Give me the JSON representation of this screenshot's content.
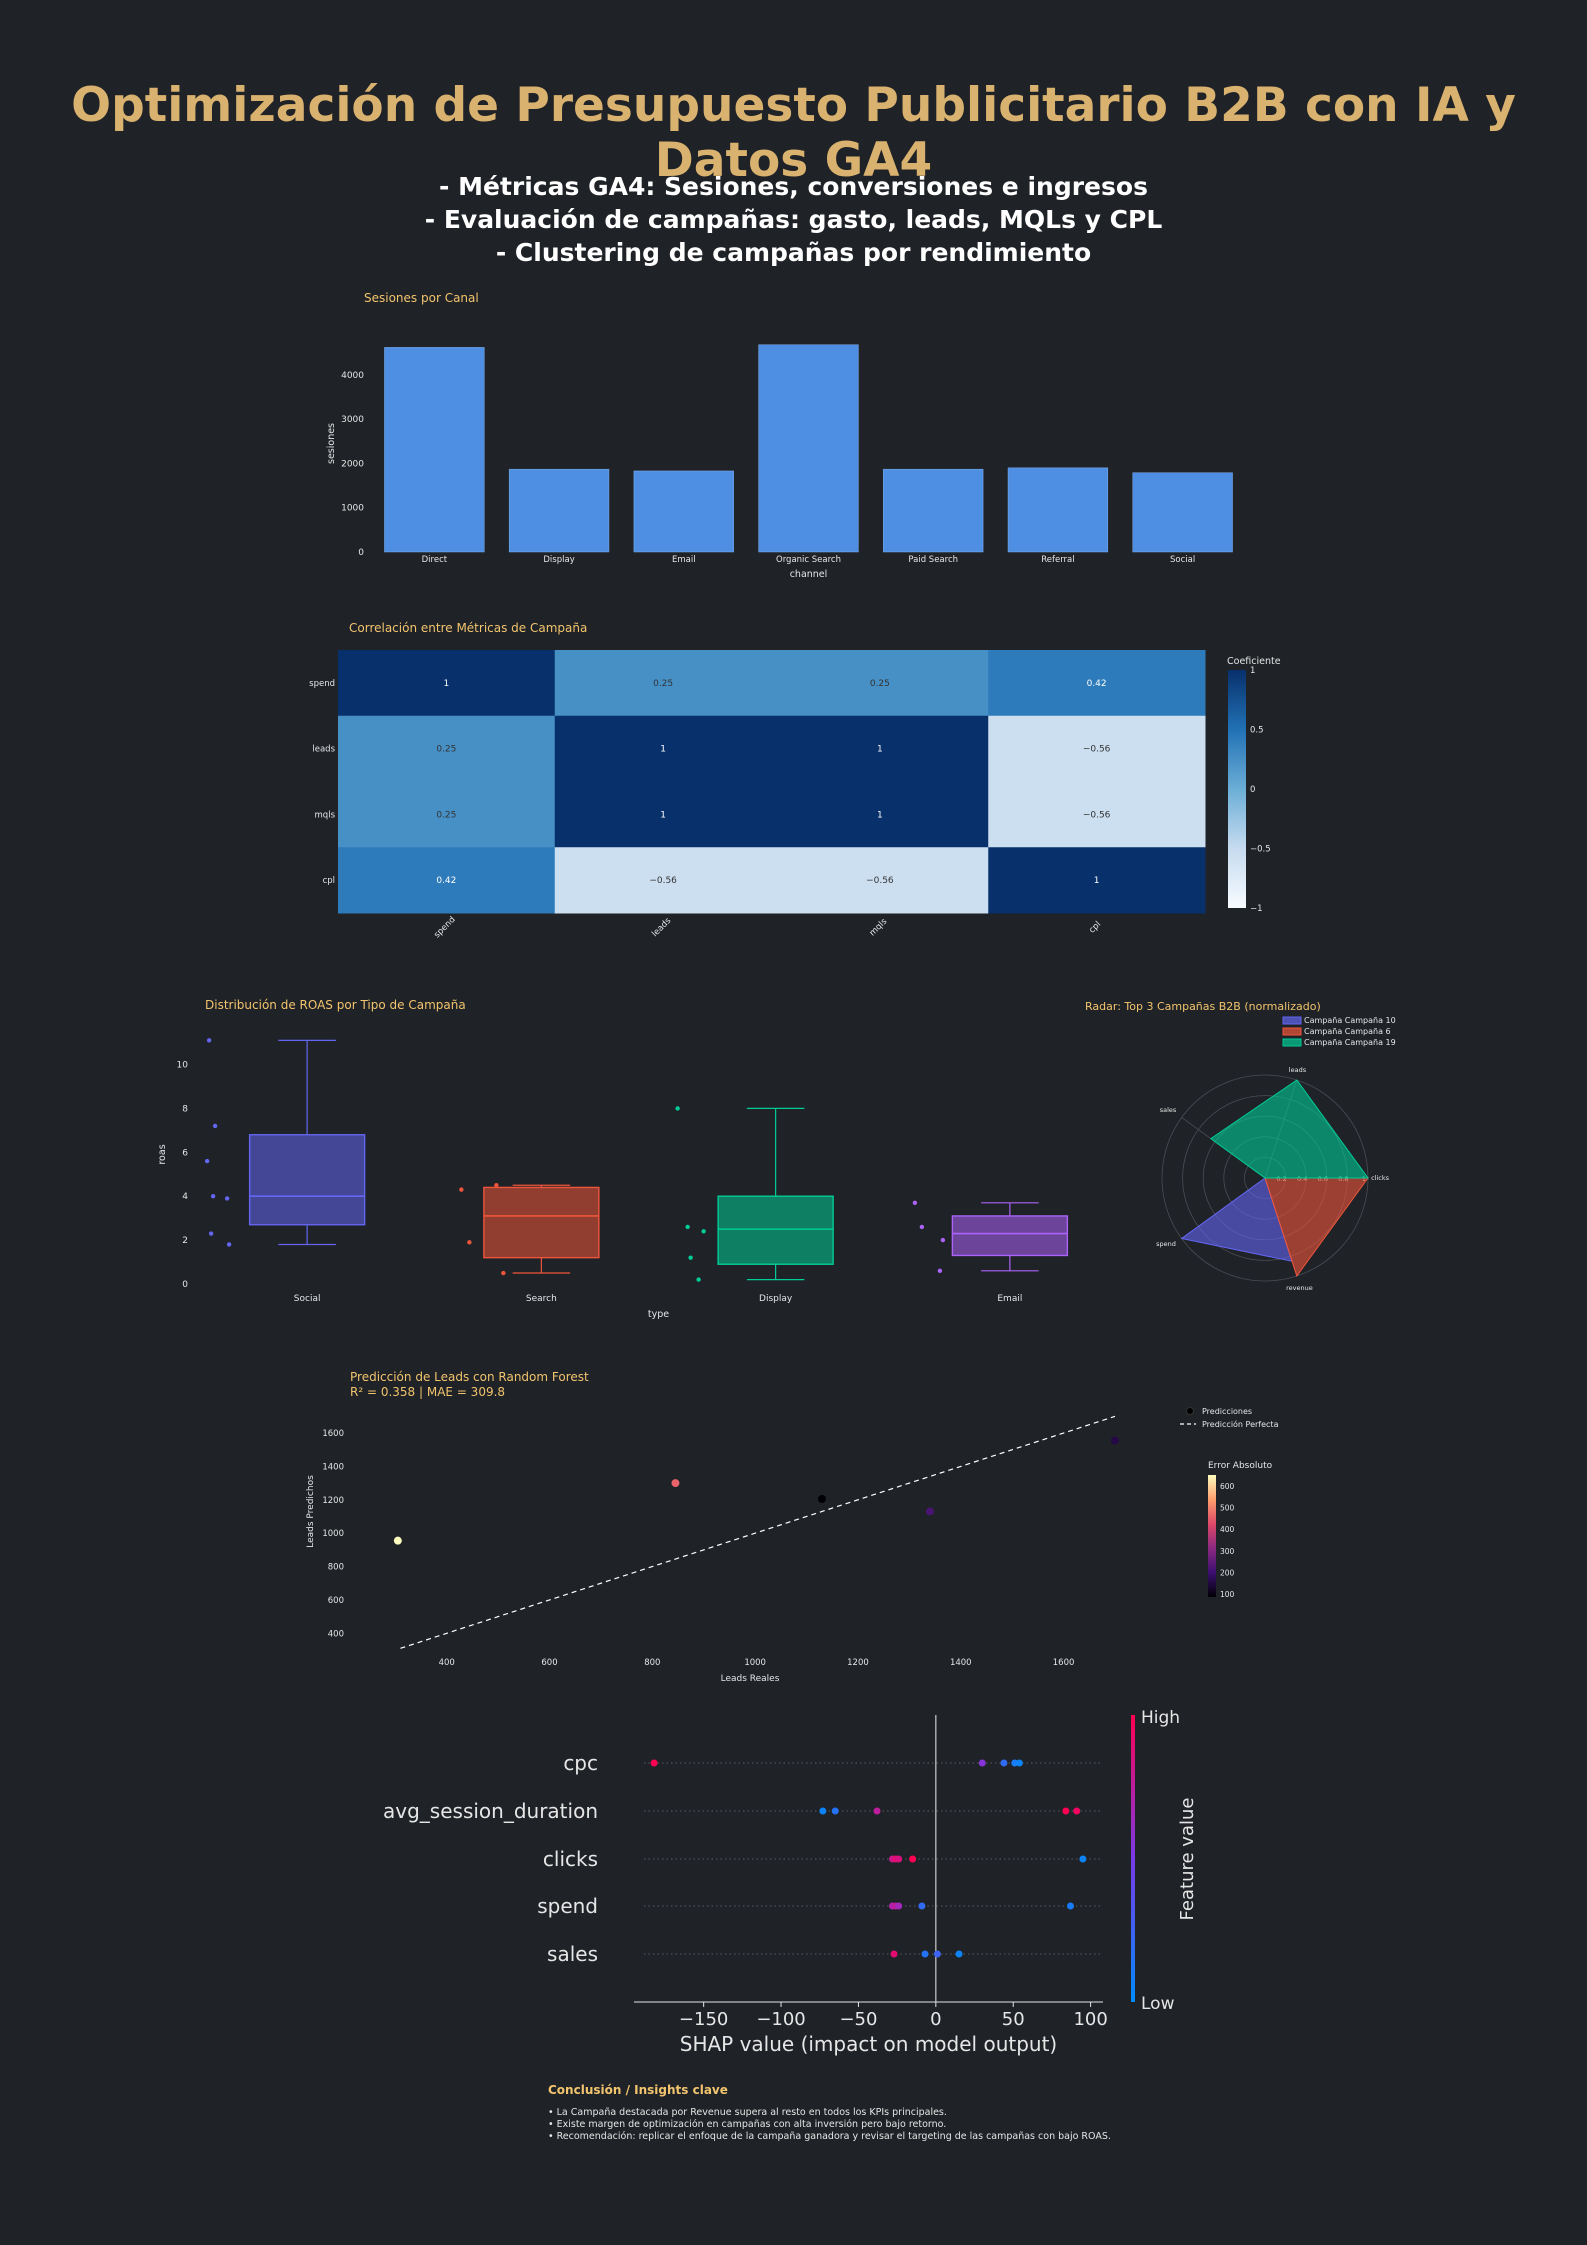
{
  "header": {
    "title": "Optimización de Presupuesto Publicitario B2B con IA y Datos GA4",
    "subtitle_lines": [
      "- Métricas  GA4: Sesiones, conversiones e ingresos",
      "- Evaluación de campañas: gasto, leads, MQLs y CPL",
      "- Clustering de campañas por rendimiento"
    ]
  },
  "colors": {
    "background": "#1f2227",
    "title": "#d9b26f",
    "chart_title": "#f2c46d",
    "bar": "#4f8fe3",
    "social": "#6366f1",
    "search": "#ef553b",
    "display": "#00cc96",
    "email": "#ab63fa"
  },
  "chart_data": [
    {
      "id": "sessions",
      "type": "bar",
      "title": "Sesiones por Canal",
      "xlabel": "channel",
      "ylabel": "sesiones",
      "categories": [
        "Direct",
        "Display",
        "Email",
        "Organic Search",
        "Paid Search",
        "Referral",
        "Social"
      ],
      "values": [
        4620,
        1870,
        1830,
        4680,
        1870,
        1900,
        1790
      ],
      "yticks": [
        0,
        1000,
        2000,
        3000,
        4000
      ],
      "ylim": [
        0,
        4900
      ]
    },
    {
      "id": "correlation",
      "type": "heatmap",
      "title": "Correlación entre Métricas de Campaña",
      "labels": [
        "spend",
        "leads",
        "mqls",
        "cpl"
      ],
      "matrix": [
        [
          1,
          0.25,
          0.25,
          0.42
        ],
        [
          0.25,
          1,
          1,
          -0.56
        ],
        [
          0.25,
          1,
          1,
          -0.56
        ],
        [
          0.42,
          -0.56,
          -0.56,
          1
        ]
      ],
      "cell_text": [
        [
          "1",
          "0.25",
          "0.25",
          "0.42"
        ],
        [
          "0.25",
          "1",
          "1",
          "−0.56"
        ],
        [
          "0.25",
          "1",
          "1",
          "−0.56"
        ],
        [
          "0.42",
          "−0.56",
          "−0.56",
          "1"
        ]
      ],
      "colorbar_title": "Coeficiente",
      "colorbar_ticks": [
        "1",
        "0.5",
        "0",
        "−0.5",
        "−1"
      ],
      "zlim": [
        -1,
        1
      ]
    },
    {
      "id": "roas",
      "type": "box",
      "title": "Distribución de ROAS por Tipo de Campaña",
      "xlabel": "type",
      "ylabel": "roas",
      "yticks": [
        0,
        2,
        4,
        6,
        8,
        10
      ],
      "ylim": [
        0,
        11.8
      ],
      "groups": [
        {
          "name": "Social",
          "min": 1.8,
          "q1": 2.7,
          "median": 4.0,
          "q3": 6.8,
          "max": 11.1,
          "points": [
            11.1,
            7.2,
            5.6,
            4.0,
            3.9,
            2.3,
            1.8
          ]
        },
        {
          "name": "Search",
          "min": 0.5,
          "q1": 1.2,
          "median": 3.1,
          "q3": 4.4,
          "max": 4.5,
          "points": [
            4.5,
            4.3,
            1.9,
            0.5
          ]
        },
        {
          "name": "Display",
          "min": 0.2,
          "q1": 0.9,
          "median": 2.5,
          "q3": 4.0,
          "max": 8.0,
          "points": [
            8.0,
            2.6,
            2.4,
            1.2,
            0.2
          ]
        },
        {
          "name": "Email",
          "min": 0.6,
          "q1": 1.3,
          "median": 2.3,
          "q3": 3.1,
          "max": 3.7,
          "points": [
            3.7,
            2.6,
            2.0,
            0.6
          ]
        }
      ]
    },
    {
      "id": "radar",
      "type": "radar",
      "title": "Radar: Top 3 Campañas B2B (normalizado)",
      "axes": [
        "leads",
        "clicks",
        "revenue",
        "spend",
        "sales"
      ],
      "radial_ticks": [
        "0.2",
        "0.4",
        "0.6",
        "0.8",
        "1"
      ],
      "series": [
        {
          "name": "Campaña Campaña 10",
          "values": [
            0.0,
            0.0,
            0.85,
            1.0,
            0.0
          ]
        },
        {
          "name": "Campaña Campaña 6",
          "values": [
            0.0,
            1.0,
            1.0,
            0.0,
            0.0
          ]
        },
        {
          "name": "Campaña Campaña 19",
          "values": [
            1.0,
            1.0,
            0.0,
            0.0,
            0.65
          ]
        }
      ]
    },
    {
      "id": "prediction",
      "type": "scatter",
      "title_line1": "Predicción de Leads con Random Forest",
      "title_line2": "R² = 0.358 | MAE = 309.8",
      "xlabel": "Leads Reales",
      "ylabel": "Leads Predichos",
      "xticks": [
        400,
        600,
        800,
        1000,
        1200,
        1400,
        1600
      ],
      "yticks": [
        400,
        600,
        800,
        1000,
        1200,
        1400,
        1600
      ],
      "xlim": [
        280,
        1700
      ],
      "ylim": [
        300,
        1720
      ],
      "points": [
        {
          "x": 305,
          "y": 955,
          "error": 650
        },
        {
          "x": 845,
          "y": 1300,
          "error": 455
        },
        {
          "x": 1130,
          "y": 1205,
          "error": 75
        },
        {
          "x": 1340,
          "y": 1130,
          "error": 210
        },
        {
          "x": 1700,
          "y": 1555,
          "error": 145
        }
      ],
      "perfect_line": [
        [
          310,
          310
        ],
        [
          1700,
          1700
        ]
      ],
      "legend": [
        "Predicciones",
        "Predicción Perfecta"
      ],
      "colorbar_title": "Error Absoluto",
      "colorbar_ticks": [
        "600",
        "500",
        "400",
        "300",
        "200",
        "100"
      ],
      "zlim": [
        75,
        650
      ]
    },
    {
      "id": "shap",
      "type": "scatter",
      "xlabel": "SHAP value (impact on model output)",
      "xticks": [
        "−150",
        "−100",
        "−50",
        "0",
        "50",
        "100"
      ],
      "xtick_values": [
        -150,
        -100,
        -50,
        0,
        50,
        100
      ],
      "xlim": [
        -195,
        108
      ],
      "features": [
        "cpc",
        "avg_session_duration",
        "clicks",
        "spend",
        "sales"
      ],
      "points": [
        [
          {
            "v": -182,
            "f": 1.0
          },
          {
            "v": 30,
            "f": 0.55
          },
          {
            "v": 44,
            "f": 0.2
          },
          {
            "v": 51,
            "f": 0.1
          },
          {
            "v": 54,
            "f": 0.05
          }
        ],
        [
          {
            "v": -73,
            "f": 0.05
          },
          {
            "v": -65,
            "f": 0.15
          },
          {
            "v": -38,
            "f": 0.75
          },
          {
            "v": 84,
            "f": 1.0
          },
          {
            "v": 91,
            "f": 0.95
          }
        ],
        [
          {
            "v": -28,
            "f": 0.8
          },
          {
            "v": -26,
            "f": 0.9
          },
          {
            "v": -24,
            "f": 0.85
          },
          {
            "v": -15,
            "f": 1.0
          },
          {
            "v": 95,
            "f": 0.05
          }
        ],
        [
          {
            "v": -28,
            "f": 0.7
          },
          {
            "v": -26,
            "f": 0.75
          },
          {
            "v": -24,
            "f": 0.65
          },
          {
            "v": -9,
            "f": 0.2
          },
          {
            "v": 87,
            "f": 0.1
          }
        ],
        [
          {
            "v": -27,
            "f": 0.9
          },
          {
            "v": -7,
            "f": 0.15
          },
          {
            "v": 1,
            "f": 0.25
          },
          {
            "v": 15,
            "f": 0.05
          }
        ]
      ],
      "colorbar_title": "Feature value",
      "colorbar_high": "High",
      "colorbar_low": "Low"
    }
  ],
  "conclusion": {
    "title": "Conclusión / Insights clave",
    "lines": [
      "• La Campaña destacada por Revenue supera al resto en todos los KPIs principales.",
      "• Existe margen de optimización en campañas con alta inversión pero bajo retorno.",
      "• Recomendación: replicar el enfoque de la campaña ganadora y revisar el targeting de las campañas con bajo ROAS."
    ]
  }
}
